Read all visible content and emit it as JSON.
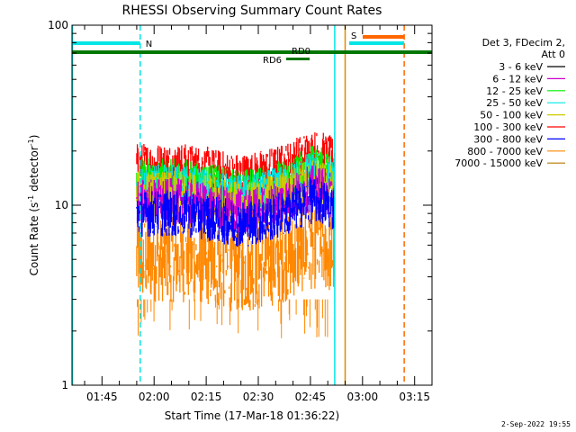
{
  "chart_data": {
    "type": "line",
    "title": "RHESSI Observing Summary Count Rates",
    "xlabel": "Start Time (17-Mar-18 01:36:22)",
    "ylabel_prefix": "Count Rate (s",
    "ylabel_sup1": "-1",
    "ylabel_mid": " detector",
    "ylabel_sup2": "-1",
    "ylabel_suffix": ")",
    "y_scale": "log",
    "ylim": [
      1,
      100
    ],
    "xlim": [
      "01:36:22",
      "03:20:00"
    ],
    "x_ticks": [
      "01:45",
      "02:00",
      "02:15",
      "02:30",
      "02:45",
      "03:00",
      "03:15"
    ],
    "y_ticks": [
      "1",
      "10",
      "100"
    ],
    "legend_header": [
      "Det 3, FDecim 2,",
      "Att 0"
    ],
    "series": [
      {
        "name": "3 - 6 keV",
        "color": "#000000",
        "level": null
      },
      {
        "name": "6 - 12 keV",
        "color": "#cc00cc",
        "level": 10.5
      },
      {
        "name": "12 - 25 keV",
        "color": "#00ee00",
        "level": 13.5
      },
      {
        "name": "25 - 50 keV",
        "color": "#00e5e5",
        "level": 12.5
      },
      {
        "name": "50 - 100 keV",
        "color": "#cccc00",
        "level": 11.5
      },
      {
        "name": "100 - 300 keV",
        "color": "#ff0000",
        "level": 16.5
      },
      {
        "name": "300 - 800 keV",
        "color": "#0000ff",
        "level": 9.0
      },
      {
        "name": "800 - 7000 keV",
        "color": "#ff8800",
        "level": 5.0
      },
      {
        "name": "7000 - 15000 keV",
        "color": "#b87800",
        "level": null
      }
    ],
    "data_window": [
      "01:55",
      "02:52"
    ],
    "annotations": {
      "night": {
        "label": "N",
        "start": "01:36",
        "end": "01:56"
      },
      "saa": {
        "label": "S",
        "start": "02:53",
        "end": "03:12"
      },
      "rd0": {
        "label": "RD0"
      },
      "rd6": {
        "label": "RD6"
      },
      "cyan_vlines": [
        "01:36:30",
        "02:52"
      ],
      "cyan_dashed_vline": "01:56",
      "orange_vline": "02:55",
      "orange_dashed_vline": "03:12"
    }
  },
  "footer": "2-Sep-2022 19:55"
}
